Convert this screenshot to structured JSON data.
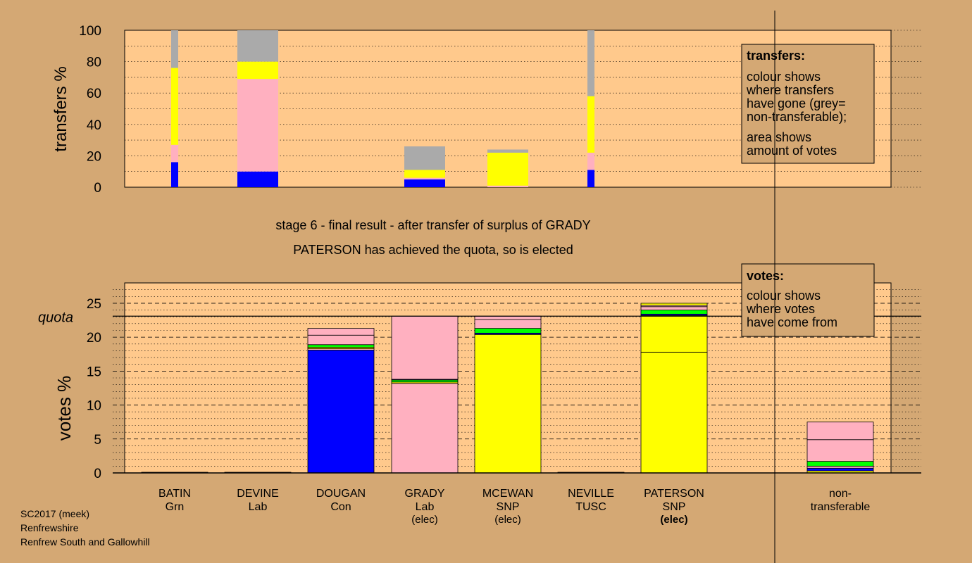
{
  "colors": {
    "background": "#d4a874",
    "plot_area": "#ffc98c",
    "Con": "#0000ff",
    "Lab": "#ffb0c0",
    "SNP": "#ffff00",
    "Grn": "#00ff00",
    "non_transferable": "#aaaaaa"
  },
  "chart_data": [
    {
      "type": "bar",
      "stacked": true,
      "ylabel": "transfers %",
      "ylim": [
        0,
        100
      ],
      "yticks": [
        0,
        20,
        40,
        60,
        80,
        100
      ],
      "grid": true,
      "legend": {
        "title": "transfers:",
        "lines1": [
          "colour shows",
          "where transfers",
          "have gone (grey=",
          "non-transferable);"
        ],
        "lines2": [
          "area shows",
          "amount of votes"
        ]
      },
      "series_order": [
        "Con",
        "Lab",
        "SNP",
        "Grn",
        "non_transferable"
      ],
      "bars": [
        {
          "slot": 0,
          "narrow": true,
          "segments": {
            "Con": 16,
            "Lab": 11,
            "SNP": 49,
            "Grn": 0,
            "non_transferable": 24
          }
        },
        {
          "slot": 1,
          "narrow": false,
          "segments": {
            "Con": 10,
            "Lab": 59,
            "SNP": 11,
            "Grn": 0,
            "non_transferable": 20
          }
        },
        {
          "slot": 3,
          "narrow": false,
          "segments": {
            "Con": 5,
            "Lab": 1,
            "SNP": 5,
            "Grn": 0,
            "non_transferable": 15
          }
        },
        {
          "slot": 4,
          "narrow": false,
          "segments": {
            "Con": 0,
            "Lab": 1,
            "SNP": 21,
            "Grn": 0,
            "non_transferable": 2
          }
        },
        {
          "slot": 5,
          "narrow": true,
          "segments": {
            "Con": 11,
            "Lab": 11,
            "SNP": 36,
            "Grn": 0,
            "non_transferable": 42
          }
        }
      ]
    },
    {
      "type": "bar",
      "stacked": true,
      "ylabel": "votes %",
      "ylim": [
        0,
        28
      ],
      "yticks": [
        0,
        5,
        10,
        15,
        20,
        25
      ],
      "quota": 23.1,
      "quota_label": "quota",
      "grid": true,
      "legend": {
        "title": "votes:",
        "lines1": [
          "colour shows",
          "where votes",
          "have come from"
        ]
      },
      "categories": [
        {
          "name": "BATIN",
          "party": "Grn",
          "note": ""
        },
        {
          "name": "DEVINE",
          "party": "Lab",
          "note": ""
        },
        {
          "name": "DOUGAN",
          "party": "Con",
          "note": ""
        },
        {
          "name": "GRADY",
          "party": "Lab",
          "note": "(elec)"
        },
        {
          "name": "MCEWAN",
          "party": "SNP",
          "note": "(elec)"
        },
        {
          "name": "NEVILLE",
          "party": "TUSC",
          "note": ""
        },
        {
          "name": "PATERSON",
          "party": "SNP",
          "note": "(elec)"
        },
        {
          "name": "non-",
          "party": "transferable",
          "note": ""
        }
      ],
      "bars": [
        {
          "slot": 0,
          "total": 0.1,
          "segments": []
        },
        {
          "slot": 1,
          "total": 0.1,
          "segments": []
        },
        {
          "slot": 2,
          "total": 21.3,
          "segments": [
            {
              "color": "Con",
              "value": 18.1
            },
            {
              "color": "Lab",
              "value": 0.2
            },
            {
              "color": "SNP",
              "value": 0.2
            },
            {
              "color": "Grn",
              "value": 0.4
            },
            {
              "color": "Lab",
              "value": 1.4
            },
            {
              "color": "Lab",
              "value": 1.0
            }
          ]
        },
        {
          "slot": 3,
          "total": 23.1,
          "segments": [
            {
              "color": "Lab",
              "value": 13.2
            },
            {
              "color": "SNP",
              "value": 0.2
            },
            {
              "color": "Grn",
              "value": 0.3
            },
            {
              "color": "Con",
              "value": 0.1
            },
            {
              "color": "Lab",
              "value": 9.3
            }
          ]
        },
        {
          "slot": 4,
          "total": 23.1,
          "segments": [
            {
              "color": "SNP",
              "value": 20.4
            },
            {
              "color": "Con",
              "value": 0.2
            },
            {
              "color": "Grn",
              "value": 0.7
            },
            {
              "color": "Lab",
              "value": 1.3
            },
            {
              "color": "Lab",
              "value": 0.5
            }
          ]
        },
        {
          "slot": 5,
          "total": 0.1,
          "segments": []
        },
        {
          "slot": 6,
          "total": 25.0,
          "segments": [
            {
              "color": "SNP",
              "value": 17.8
            },
            {
              "color": "SNP",
              "value": 5.4
            },
            {
              "color": "Con",
              "value": 0.2
            },
            {
              "color": "Grn",
              "value": 0.6
            },
            {
              "color": "Lab",
              "value": 0.5
            },
            {
              "color": "Lab",
              "value": 0.2
            },
            {
              "color": "SNP",
              "value": 0.3
            }
          ]
        },
        {
          "slot": 7,
          "total": 7.5,
          "segments": [
            {
              "color": "SNP",
              "value": 0.3
            },
            {
              "color": "Con",
              "value": 0.4
            },
            {
              "color": "Lab",
              "value": 0.3
            },
            {
              "color": "Grn",
              "value": 0.7
            },
            {
              "color": "Lab",
              "value": 3.2
            },
            {
              "color": "Lab",
              "value": 2.6
            }
          ]
        }
      ]
    }
  ],
  "stage_text": {
    "line1": "stage 6 - final result - after transfer of surplus of GRADY",
    "line2": "PATERSON has achieved the quota, so is elected"
  },
  "footer": {
    "line1": "SC2017 (meek)",
    "line2": "Renfrewshire",
    "line3": "Renfrew South and Gallowhill"
  }
}
